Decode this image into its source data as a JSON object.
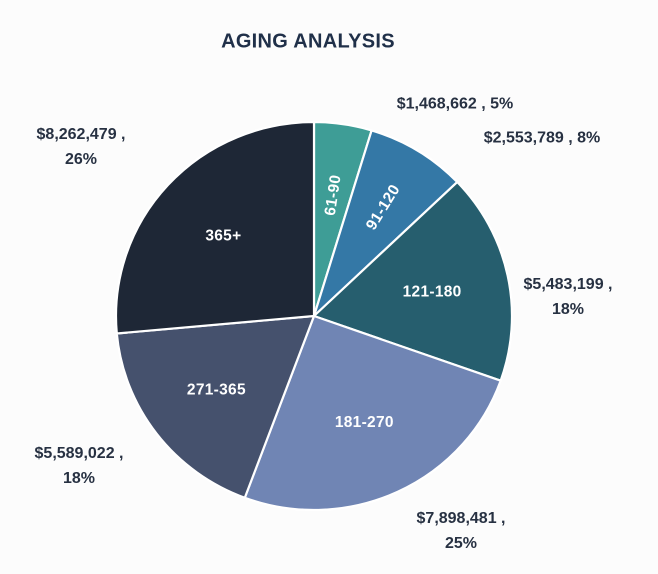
{
  "title": "AGING ANALYSIS",
  "colors": {
    "background": "#FCFCFC",
    "title_text": "#203049",
    "callout_text": "#273142",
    "slice_label_text": "#FFFFFF",
    "slice_divider": "#FFFFFF"
  },
  "chart_data": {
    "type": "pie",
    "title": "AGING ANALYSIS",
    "start_angle_deg": 0,
    "direction": "clockwise",
    "total": 31255632,
    "legend": "none",
    "slices": [
      {
        "label": "61-90",
        "value": 1468662,
        "amount_display": "$1,468,662",
        "percent": "5%",
        "color": "#3E9D96",
        "callout_lines": [
          "$1,468,662 , 5%"
        ]
      },
      {
        "label": "91-120",
        "value": 2553789,
        "amount_display": "$2,553,789",
        "percent": "8%",
        "color": "#3478A6",
        "callout_lines": [
          "$2,553,789 , 8%"
        ]
      },
      {
        "label": "121-180",
        "value": 5483199,
        "amount_display": "$5,483,199",
        "percent": "18%",
        "color": "#265E6E",
        "callout_lines": [
          "$5,483,199 ,",
          "18%"
        ]
      },
      {
        "label": "181-270",
        "value": 7898481,
        "amount_display": "$7,898,481",
        "percent": "25%",
        "color": "#7085B4",
        "callout_lines": [
          "$7,898,481 ,",
          "25%"
        ]
      },
      {
        "label": "271-365",
        "value": 5589022,
        "amount_display": "$5,589,022",
        "percent": "18%",
        "color": "#45516D",
        "callout_lines": [
          "$5,589,022 ,",
          "18%"
        ]
      },
      {
        "label": "365+",
        "value": 8262479,
        "amount_display": "$8,262,479",
        "percent": "26%",
        "color": "#1E2736",
        "callout_lines": [
          "$8,262,479 ,",
          "26%"
        ]
      }
    ]
  }
}
